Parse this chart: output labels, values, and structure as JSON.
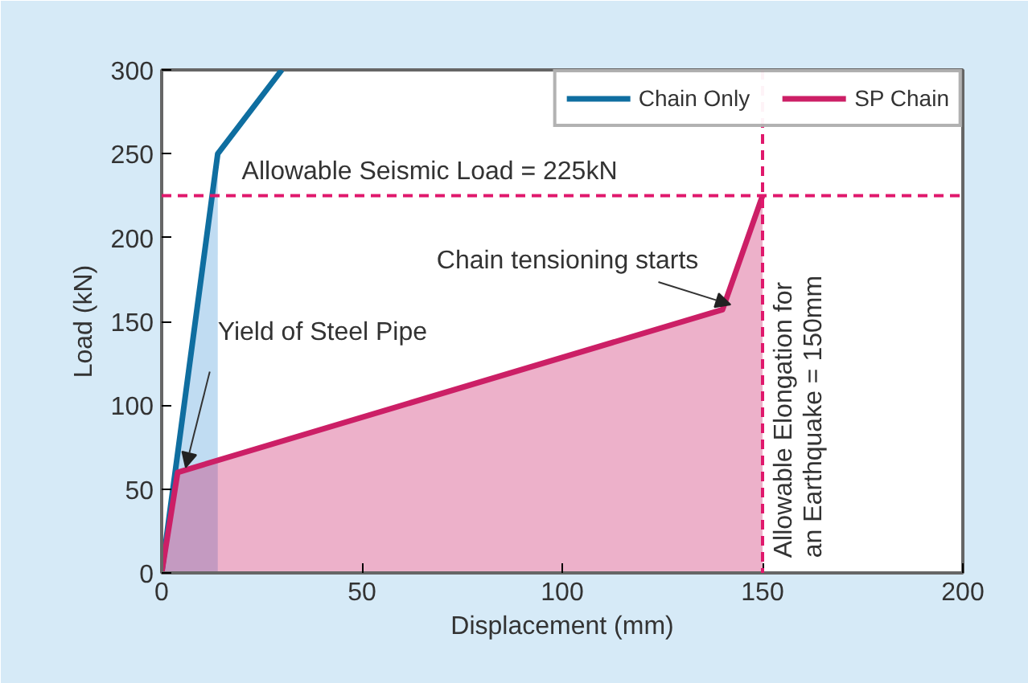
{
  "chart_data": {
    "type": "line",
    "xlabel": "Displacement (mm)",
    "ylabel": "Load (kN)",
    "xlim": [
      0,
      200
    ],
    "ylim": [
      0,
      300
    ],
    "xticks": [
      0,
      50,
      100,
      150,
      200
    ],
    "yticks": [
      0,
      50,
      100,
      150,
      200,
      250,
      300
    ],
    "grid": false,
    "legend": "top right",
    "marker": "none",
    "line_style": "solid",
    "series": [
      {
        "type": "area",
        "color": "#4a9bdb",
        "x": [
          0,
          14
        ],
        "values": [
          0,
          250
        ]
      },
      {
        "name": "Chain Only",
        "color": "#0f6ea0",
        "x": [
          0,
          14,
          30
        ],
        "values": [
          0,
          250,
          300
        ]
      },
      {
        "type": "area",
        "name": "SP Chain",
        "color": "#cc1f66",
        "x": [
          0,
          4,
          140,
          150
        ],
        "values": [
          0,
          60,
          157,
          225
        ]
      }
    ],
    "ref_lines": [
      {
        "axis": "y",
        "value": 225,
        "label": "Allowable Seismic Load  = 225kN",
        "color": "#e0186c",
        "line_style": "dashed"
      },
      {
        "axis": "x",
        "value": 150,
        "label": "Allowable Elongation for\nan Earthquake = 150mm",
        "color": "#e0186c",
        "line_style": "dashed"
      }
    ],
    "annotations": [
      {
        "text": "Chain tensioning starts",
        "x": 140,
        "y": 157
      },
      {
        "text": "Yield of Steel Pipe",
        "x": 4,
        "y": 60
      }
    ]
  }
}
